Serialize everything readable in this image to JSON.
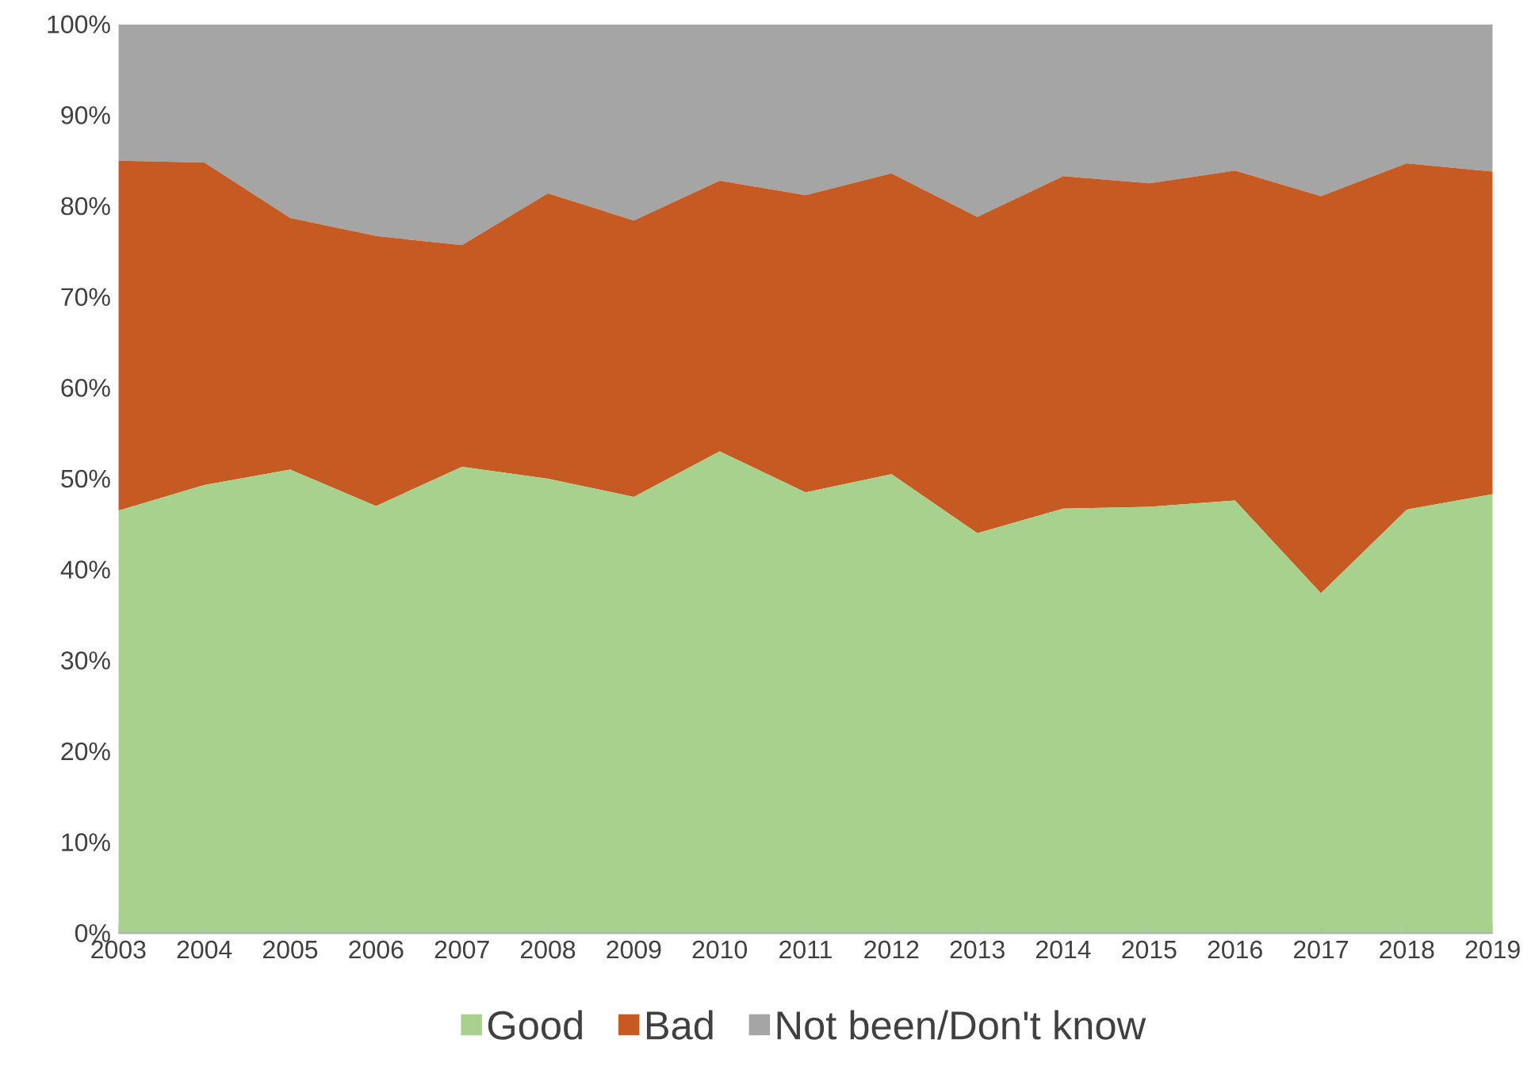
{
  "chart_data": {
    "type": "area",
    "stacked": true,
    "legend": "bottom",
    "grid": false,
    "categories": [
      "2003",
      "2004",
      "2005",
      "2006",
      "2007",
      "2008",
      "2009",
      "2010",
      "2011",
      "2012",
      "2013",
      "2014",
      "2015",
      "2016",
      "2017",
      "2018",
      "2019"
    ],
    "ylim": [
      0,
      100
    ],
    "yticks": [
      {
        "value": 0,
        "label": "0%"
      },
      {
        "value": 10,
        "label": "10%"
      },
      {
        "value": 20,
        "label": "20%"
      },
      {
        "value": 30,
        "label": "30%"
      },
      {
        "value": 40,
        "label": "40%"
      },
      {
        "value": 50,
        "label": "50%"
      },
      {
        "value": 60,
        "label": "60%"
      },
      {
        "value": 70,
        "label": "70%"
      },
      {
        "value": 80,
        "label": "80%"
      },
      {
        "value": 90,
        "label": "90%"
      },
      {
        "value": 100,
        "label": "100%"
      }
    ],
    "series": [
      {
        "name": "Good",
        "color": "#a9d18e",
        "values": [
          46.5,
          49.3,
          51,
          47,
          51.3,
          50,
          48,
          53,
          48.5,
          50.5,
          44,
          46.7,
          46.9,
          47.6,
          37.4,
          46.6,
          48.3
        ]
      },
      {
        "name": "Bad",
        "color": "#c55a23",
        "values": [
          38.5,
          35.5,
          27.7,
          29.7,
          24.4,
          31.4,
          30.4,
          29.8,
          32.7,
          33.1,
          34.8,
          36.6,
          35.6,
          36.3,
          43.7,
          38.1,
          35.5
        ]
      },
      {
        "name": "Not been/Don't know",
        "color": "#a5a5a5",
        "values": [
          15,
          15.2,
          21.3,
          23.3,
          24.3,
          18.6,
          21.6,
          17.2,
          18.8,
          16.4,
          21.2,
          16.7,
          17.5,
          16.1,
          18.9,
          15.3,
          16.2
        ]
      }
    ]
  }
}
